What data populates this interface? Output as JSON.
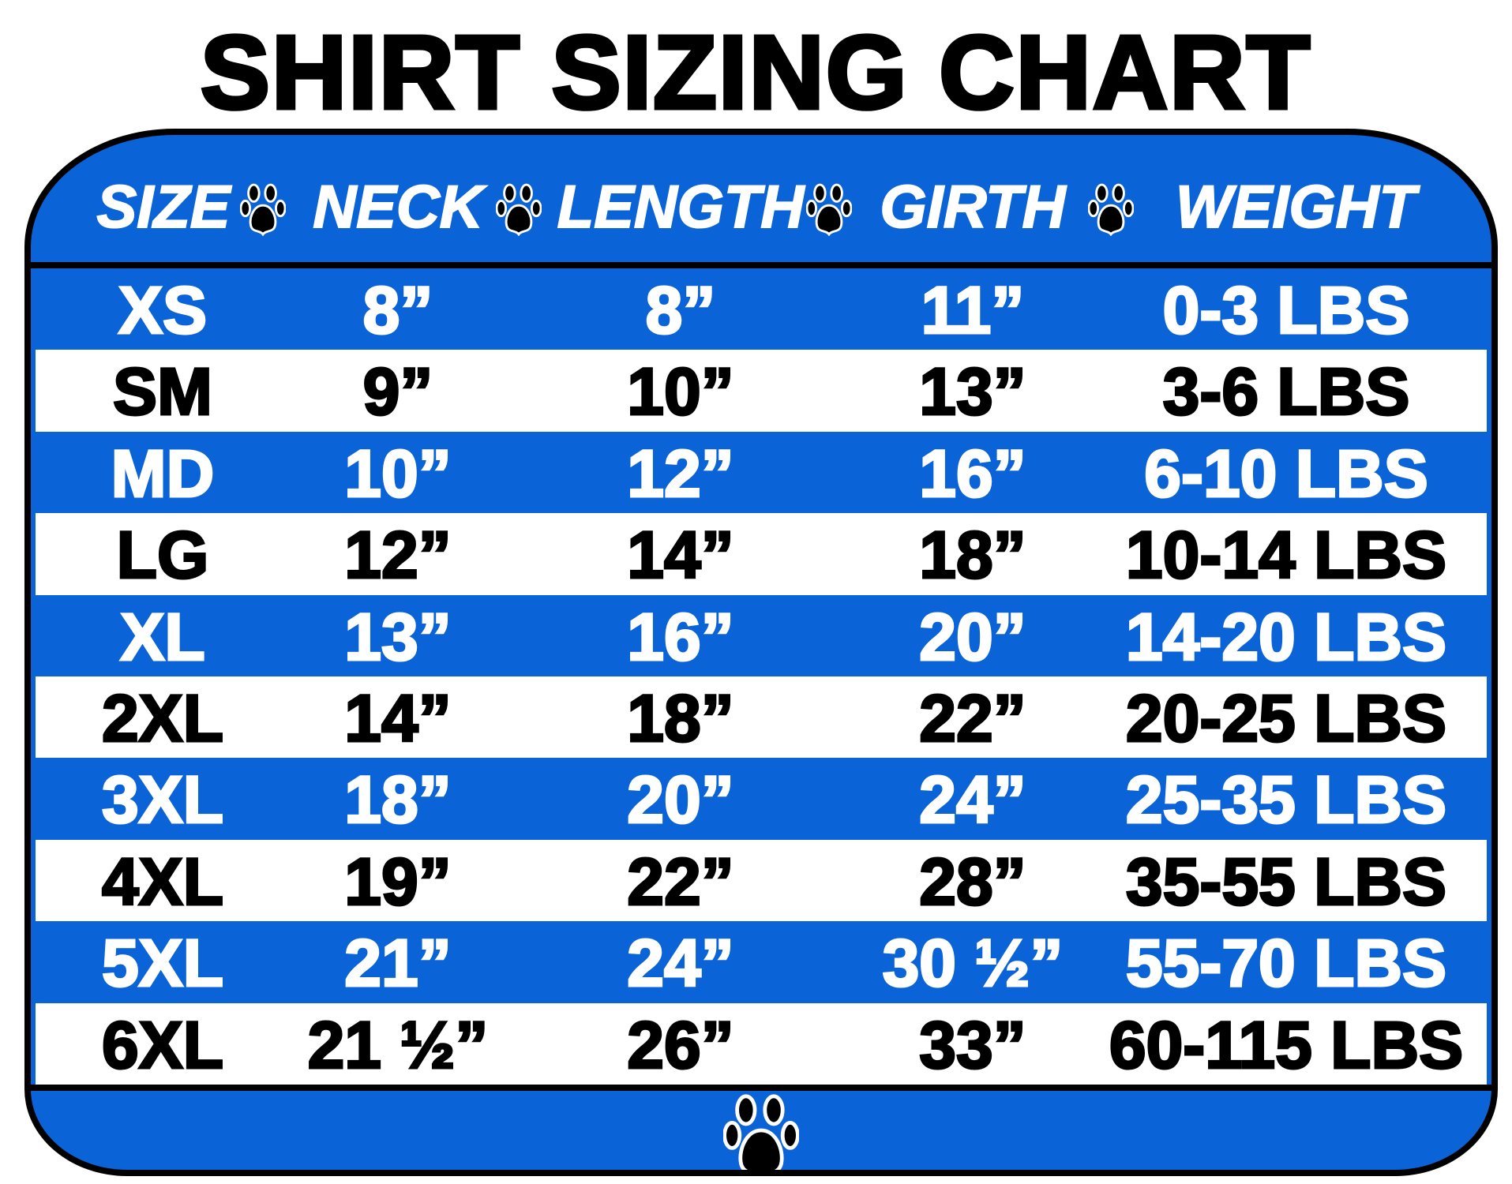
{
  "title": "SHIRT SIZING CHART",
  "colors": {
    "blue": "#0b63d8",
    "black": "#000000",
    "white": "#ffffff"
  },
  "headers": [
    "SIZE",
    "NECK",
    "LENGTH",
    "GIRTH",
    "WEIGHT"
  ],
  "separator_icon": "paw-print-icon",
  "rows": [
    {
      "size": "XS",
      "neck": "8”",
      "length": "8”",
      "girth": "11”",
      "weight": "0-3 LBS"
    },
    {
      "size": "SM",
      "neck": "9”",
      "length": "10”",
      "girth": "13”",
      "weight": "3-6 LBS"
    },
    {
      "size": "MD",
      "neck": "10”",
      "length": "12”",
      "girth": "16”",
      "weight": "6-10 LBS"
    },
    {
      "size": "LG",
      "neck": "12”",
      "length": "14”",
      "girth": "18”",
      "weight": "10-14 LBS"
    },
    {
      "size": "XL",
      "neck": "13”",
      "length": "16”",
      "girth": "20”",
      "weight": "14-20 LBS"
    },
    {
      "size": "2XL",
      "neck": "14”",
      "length": "18”",
      "girth": "22”",
      "weight": "20-25 LBS"
    },
    {
      "size": "3XL",
      "neck": "18”",
      "length": "20”",
      "girth": "24”",
      "weight": "25-35 LBS"
    },
    {
      "size": "4XL",
      "neck": "19”",
      "length": "22”",
      "girth": "28”",
      "weight": "35-55 LBS"
    },
    {
      "size": "5XL",
      "neck": "21”",
      "length": "24”",
      "girth": "30 ½”",
      "weight": "55-70 LBS"
    },
    {
      "size": "6XL",
      "neck": "21 ½”",
      "length": "26”",
      "girth": "33”",
      "weight": "60-115 LBS"
    }
  ]
}
